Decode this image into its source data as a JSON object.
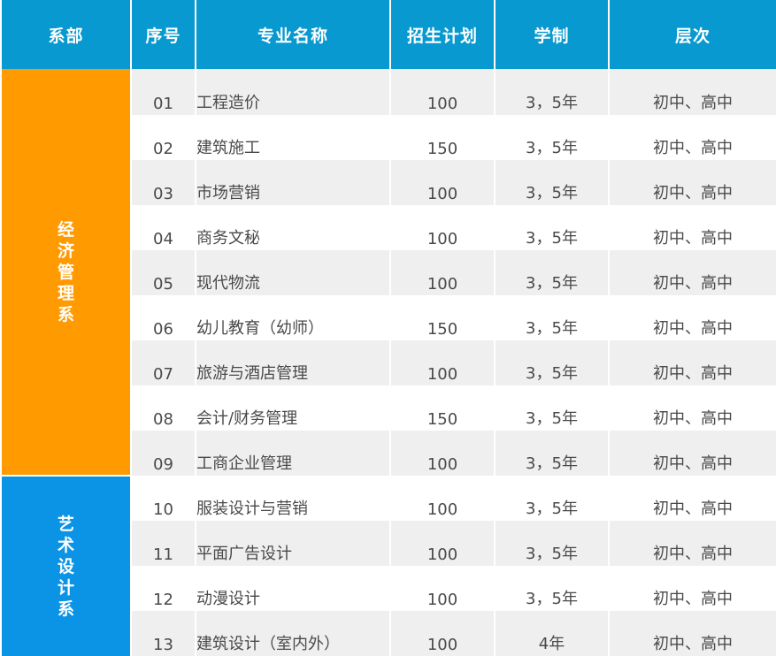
{
  "headers": {
    "department": "系部",
    "number": "序号",
    "major": "专业名称",
    "enrollment": "招生计划",
    "duration": "学制",
    "level": "层次"
  },
  "departments": {
    "economics": "经济管理系",
    "arts": "艺术设计系"
  },
  "rows": [
    {
      "no": "01",
      "name": "工程造价",
      "plan": "100",
      "years": "3，5年",
      "level": "初中、高中"
    },
    {
      "no": "02",
      "name": "建筑施工",
      "plan": "150",
      "years": "3，5年",
      "level": "初中、高中"
    },
    {
      "no": "03",
      "name": "市场营销",
      "plan": "100",
      "years": "3，5年",
      "level": "初中、高中"
    },
    {
      "no": "04",
      "name": "商务文秘",
      "plan": "100",
      "years": "3，5年",
      "level": "初中、高中"
    },
    {
      "no": "05",
      "name": "现代物流",
      "plan": "100",
      "years": "3，5年",
      "level": "初中、高中"
    },
    {
      "no": "06",
      "name": "幼儿教育（幼师）",
      "plan": "150",
      "years": "3，5年",
      "level": "初中、高中"
    },
    {
      "no": "07",
      "name": "旅游与酒店管理",
      "plan": "100",
      "years": "3，5年",
      "level": "初中、高中"
    },
    {
      "no": "08",
      "name": "会计/财务管理",
      "plan": "150",
      "years": "3，5年",
      "level": "初中、高中"
    },
    {
      "no": "09",
      "name": "工商企业管理",
      "plan": "100",
      "years": "3，5年",
      "level": "初中、高中"
    },
    {
      "no": "10",
      "name": "服装设计与营销",
      "plan": "100",
      "years": "3，5年",
      "level": "初中、高中"
    },
    {
      "no": "11",
      "name": "平面广告设计",
      "plan": "100",
      "years": "3，5年",
      "level": "初中、高中"
    },
    {
      "no": "12",
      "name": "动漫设计",
      "plan": "100",
      "years": "3，5年",
      "level": "初中、高中"
    },
    {
      "no": "13",
      "name": "建筑设计（室内外）",
      "plan": "100",
      "years": "4年",
      "level": "初中、高中"
    }
  ],
  "colors": {
    "header_bg": "#0799cf",
    "economics_bg": "#ff9a00",
    "arts_bg": "#0b93e6",
    "stripe": "#efefef"
  }
}
